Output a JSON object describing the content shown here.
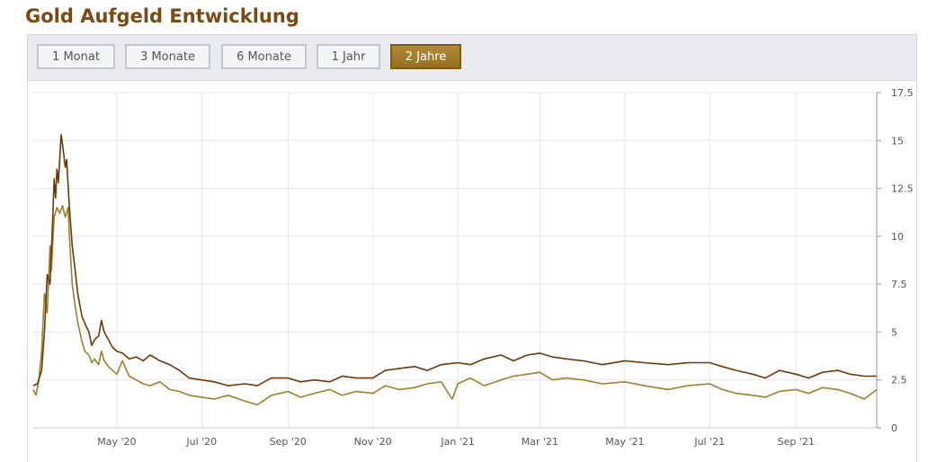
{
  "header": {
    "title": "Gold Aufgeld Entwicklung"
  },
  "toolbar": {
    "buttons": [
      {
        "label": "1 Monat",
        "active": false
      },
      {
        "label": "3 Monate",
        "active": false
      },
      {
        "label": "6 Monate",
        "active": false
      },
      {
        "label": "1 Jahr",
        "active": false
      },
      {
        "label": "2 Jahre",
        "active": true
      }
    ]
  },
  "colors": {
    "series_dark": "#6b3a0c",
    "series_light": "#a07f2c",
    "active_button": "#a37d2e"
  },
  "chart_data": {
    "type": "line",
    "title": "",
    "xlabel": "",
    "ylabel": "",
    "ylim": [
      0,
      17.5
    ],
    "y_ticks": [
      "0",
      "2.5",
      "5",
      "7.5",
      "10",
      "12.5",
      "15",
      "17.5"
    ],
    "x_ticks": [
      {
        "label": "May '20",
        "date": "2020-05-01"
      },
      {
        "label": "Jul '20",
        "date": "2020-07-01"
      },
      {
        "label": "Sep '20",
        "date": "2020-09-01"
      },
      {
        "label": "Nov '20",
        "date": "2020-11-01"
      },
      {
        "label": "Jan '21",
        "date": "2021-01-01"
      },
      {
        "label": "Mar '21",
        "date": "2021-03-01"
      },
      {
        "label": "May '21",
        "date": "2021-05-01"
      },
      {
        "label": "Jul '21",
        "date": "2021-07-01"
      },
      {
        "label": "Sep '21",
        "date": "2021-09-01"
      }
    ],
    "xlim": [
      "2020-03-02",
      "2021-10-29"
    ],
    "grid": true,
    "series": [
      {
        "color": "#6b3a0c",
        "points": [
          [
            "2020-03-02",
            2.2
          ],
          [
            "2020-03-05",
            2.3
          ],
          [
            "2020-03-08",
            3.0
          ],
          [
            "2020-03-10",
            5.0
          ],
          [
            "2020-03-12",
            8.0
          ],
          [
            "2020-03-14",
            7.5
          ],
          [
            "2020-03-16",
            11.0
          ],
          [
            "2020-03-17",
            13.0
          ],
          [
            "2020-03-18",
            12.0
          ],
          [
            "2020-03-19",
            13.5
          ],
          [
            "2020-03-20",
            12.8
          ],
          [
            "2020-03-22",
            15.3
          ],
          [
            "2020-03-23",
            14.8
          ],
          [
            "2020-03-25",
            13.6
          ],
          [
            "2020-03-26",
            14.0
          ],
          [
            "2020-03-28",
            11.5
          ],
          [
            "2020-03-30",
            9.5
          ],
          [
            "2020-04-01",
            8.3
          ],
          [
            "2020-04-03",
            7.0
          ],
          [
            "2020-04-06",
            5.8
          ],
          [
            "2020-04-09",
            5.3
          ],
          [
            "2020-04-11",
            5.0
          ],
          [
            "2020-04-13",
            4.3
          ],
          [
            "2020-04-15",
            4.6
          ],
          [
            "2020-04-18",
            4.8
          ],
          [
            "2020-04-20",
            5.6
          ],
          [
            "2020-04-22",
            5.0
          ],
          [
            "2020-04-25",
            4.6
          ],
          [
            "2020-04-28",
            4.2
          ],
          [
            "2020-05-01",
            4.0
          ],
          [
            "2020-05-05",
            3.9
          ],
          [
            "2020-05-10",
            3.6
          ],
          [
            "2020-05-15",
            3.7
          ],
          [
            "2020-05-20",
            3.5
          ],
          [
            "2020-05-25",
            3.8
          ],
          [
            "2020-06-01",
            3.5
          ],
          [
            "2020-06-08",
            3.3
          ],
          [
            "2020-06-15",
            3.0
          ],
          [
            "2020-06-22",
            2.6
          ],
          [
            "2020-07-01",
            2.5
          ],
          [
            "2020-07-10",
            2.4
          ],
          [
            "2020-07-20",
            2.2
          ],
          [
            "2020-08-01",
            2.3
          ],
          [
            "2020-08-10",
            2.2
          ],
          [
            "2020-08-20",
            2.6
          ],
          [
            "2020-09-01",
            2.6
          ],
          [
            "2020-09-10",
            2.4
          ],
          [
            "2020-09-20",
            2.5
          ],
          [
            "2020-10-01",
            2.4
          ],
          [
            "2020-10-10",
            2.7
          ],
          [
            "2020-10-20",
            2.6
          ],
          [
            "2020-11-01",
            2.6
          ],
          [
            "2020-11-10",
            3.0
          ],
          [
            "2020-11-20",
            3.1
          ],
          [
            "2020-12-01",
            3.2
          ],
          [
            "2020-12-10",
            3.0
          ],
          [
            "2020-12-20",
            3.3
          ],
          [
            "2021-01-01",
            3.4
          ],
          [
            "2021-01-10",
            3.3
          ],
          [
            "2021-01-20",
            3.6
          ],
          [
            "2021-02-01",
            3.8
          ],
          [
            "2021-02-10",
            3.5
          ],
          [
            "2021-02-20",
            3.8
          ],
          [
            "2021-03-01",
            3.9
          ],
          [
            "2021-03-10",
            3.7
          ],
          [
            "2021-03-20",
            3.6
          ],
          [
            "2021-04-01",
            3.5
          ],
          [
            "2021-04-15",
            3.3
          ],
          [
            "2021-05-01",
            3.5
          ],
          [
            "2021-05-15",
            3.4
          ],
          [
            "2021-06-01",
            3.3
          ],
          [
            "2021-06-15",
            3.4
          ],
          [
            "2021-07-01",
            3.4
          ],
          [
            "2021-07-10",
            3.2
          ],
          [
            "2021-07-20",
            3.0
          ],
          [
            "2021-08-01",
            2.8
          ],
          [
            "2021-08-10",
            2.6
          ],
          [
            "2021-08-20",
            3.0
          ],
          [
            "2021-09-01",
            2.8
          ],
          [
            "2021-09-10",
            2.6
          ],
          [
            "2021-09-20",
            2.9
          ],
          [
            "2021-10-01",
            3.0
          ],
          [
            "2021-10-10",
            2.8
          ],
          [
            "2021-10-20",
            2.7
          ],
          [
            "2021-10-29",
            2.7
          ]
        ]
      },
      {
        "color": "#a07f2c",
        "points": [
          [
            "2020-03-02",
            2.0
          ],
          [
            "2020-03-04",
            1.7
          ],
          [
            "2020-03-06",
            2.5
          ],
          [
            "2020-03-08",
            4.0
          ],
          [
            "2020-03-10",
            7.0
          ],
          [
            "2020-03-12",
            6.0
          ],
          [
            "2020-03-14",
            9.5
          ],
          [
            "2020-03-15",
            8.2
          ],
          [
            "2020-03-17",
            11.0
          ],
          [
            "2020-03-19",
            11.5
          ],
          [
            "2020-03-21",
            11.2
          ],
          [
            "2020-03-23",
            11.6
          ],
          [
            "2020-03-25",
            11.0
          ],
          [
            "2020-03-27",
            11.5
          ],
          [
            "2020-03-28",
            10.0
          ],
          [
            "2020-03-30",
            7.5
          ],
          [
            "2020-04-01",
            6.4
          ],
          [
            "2020-04-03",
            5.5
          ],
          [
            "2020-04-06",
            4.5
          ],
          [
            "2020-04-08",
            4.0
          ],
          [
            "2020-04-11",
            3.8
          ],
          [
            "2020-04-13",
            3.4
          ],
          [
            "2020-04-15",
            3.6
          ],
          [
            "2020-04-18",
            3.3
          ],
          [
            "2020-04-20",
            4.0
          ],
          [
            "2020-04-22",
            3.5
          ],
          [
            "2020-04-25",
            3.2
          ],
          [
            "2020-04-28",
            3.0
          ],
          [
            "2020-05-01",
            2.8
          ],
          [
            "2020-05-05",
            3.5
          ],
          [
            "2020-05-10",
            2.7
          ],
          [
            "2020-05-15",
            2.5
          ],
          [
            "2020-05-20",
            2.3
          ],
          [
            "2020-05-25",
            2.2
          ],
          [
            "2020-06-01",
            2.4
          ],
          [
            "2020-06-08",
            2.0
          ],
          [
            "2020-06-15",
            1.9
          ],
          [
            "2020-06-22",
            1.7
          ],
          [
            "2020-07-01",
            1.6
          ],
          [
            "2020-07-10",
            1.5
          ],
          [
            "2020-07-20",
            1.7
          ],
          [
            "2020-08-01",
            1.4
          ],
          [
            "2020-08-10",
            1.2
          ],
          [
            "2020-08-20",
            1.7
          ],
          [
            "2020-09-01",
            1.9
          ],
          [
            "2020-09-10",
            1.6
          ],
          [
            "2020-09-20",
            1.8
          ],
          [
            "2020-10-01",
            2.0
          ],
          [
            "2020-10-10",
            1.7
          ],
          [
            "2020-10-20",
            1.9
          ],
          [
            "2020-11-01",
            1.8
          ],
          [
            "2020-11-10",
            2.2
          ],
          [
            "2020-11-20",
            2.0
          ],
          [
            "2020-12-01",
            2.1
          ],
          [
            "2020-12-10",
            2.3
          ],
          [
            "2020-12-20",
            2.4
          ],
          [
            "2020-12-28",
            1.5
          ],
          [
            "2021-01-01",
            2.3
          ],
          [
            "2021-01-10",
            2.6
          ],
          [
            "2021-01-20",
            2.2
          ],
          [
            "2021-02-01",
            2.5
          ],
          [
            "2021-02-10",
            2.7
          ],
          [
            "2021-02-20",
            2.8
          ],
          [
            "2021-03-01",
            2.9
          ],
          [
            "2021-03-10",
            2.5
          ],
          [
            "2021-03-20",
            2.6
          ],
          [
            "2021-04-01",
            2.5
          ],
          [
            "2021-04-15",
            2.3
          ],
          [
            "2021-05-01",
            2.4
          ],
          [
            "2021-05-15",
            2.2
          ],
          [
            "2021-06-01",
            2.0
          ],
          [
            "2021-06-15",
            2.2
          ],
          [
            "2021-07-01",
            2.3
          ],
          [
            "2021-07-10",
            2.0
          ],
          [
            "2021-07-20",
            1.8
          ],
          [
            "2021-08-01",
            1.7
          ],
          [
            "2021-08-10",
            1.6
          ],
          [
            "2021-08-20",
            1.9
          ],
          [
            "2021-09-01",
            2.0
          ],
          [
            "2021-09-10",
            1.8
          ],
          [
            "2021-09-20",
            2.1
          ],
          [
            "2021-10-01",
            2.0
          ],
          [
            "2021-10-10",
            1.8
          ],
          [
            "2021-10-20",
            1.5
          ],
          [
            "2021-10-29",
            2.0
          ]
        ]
      }
    ]
  }
}
